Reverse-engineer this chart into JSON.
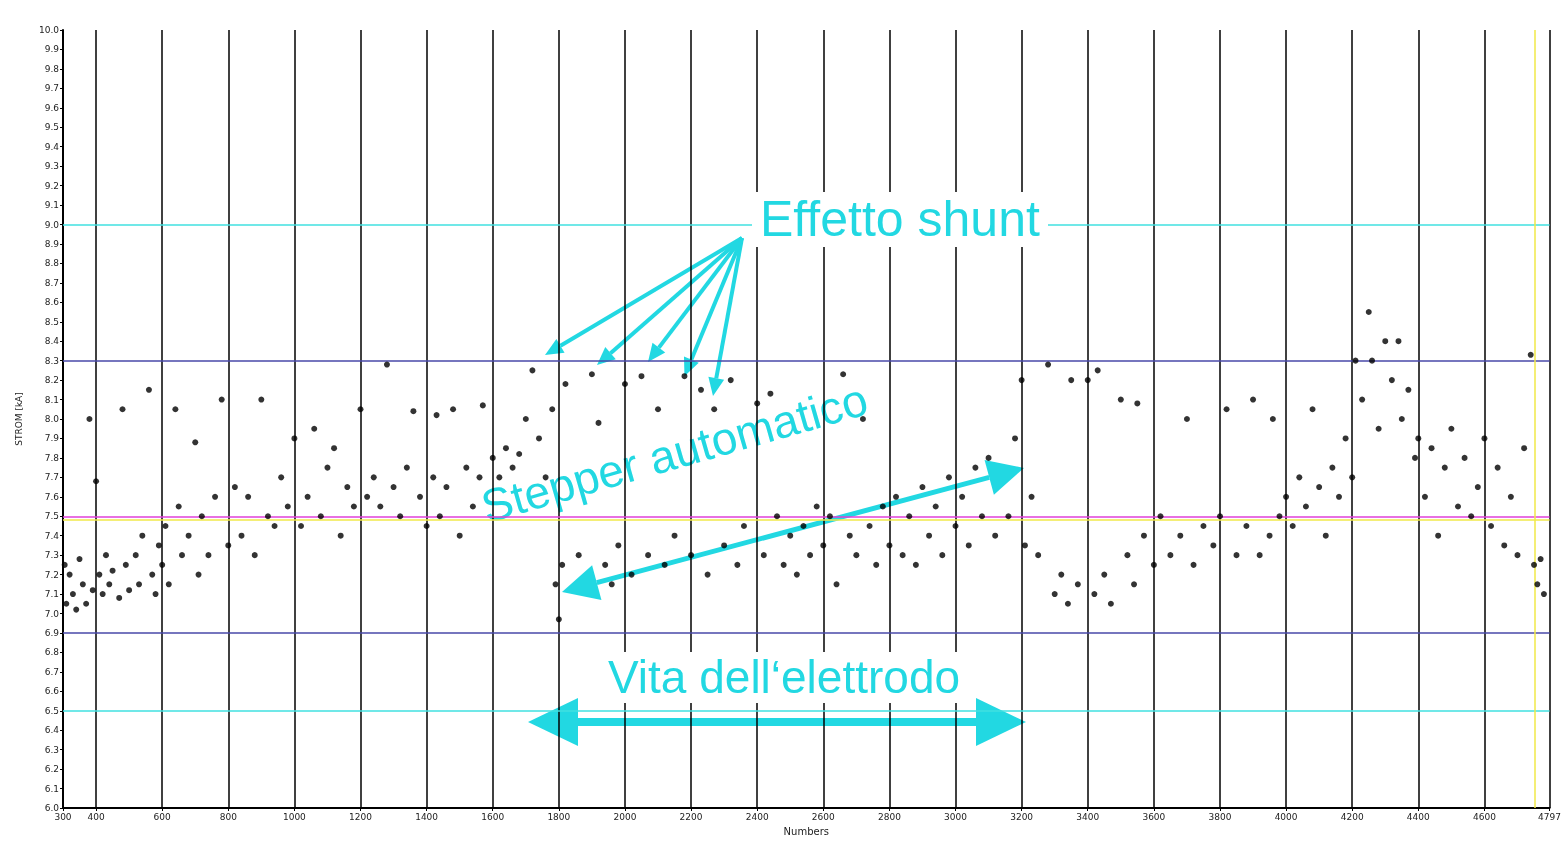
{
  "chart_data": {
    "type": "scatter",
    "xlabel": "Numbers",
    "ylabel": "STROM [kA]",
    "annotations": [
      {
        "text": "Effetto shunt",
        "x": 2180,
        "y": 8.22
      },
      "Stepper automatico",
      "Vita dell‘elettrodo"
    ],
    "xlim": [
      300,
      4797
    ],
    "xticks": [
      300,
      400,
      600,
      800,
      1000,
      1200,
      1400,
      1600,
      1800,
      2000,
      2200,
      2400,
      2600,
      2800,
      3000,
      3200,
      3400,
      3600,
      3800,
      4000,
      4200,
      4400,
      4600,
      4797
    ],
    "ylim": [
      6,
      10
    ],
    "yticks": [
      {
        "value": 6,
        "label": "6.0"
      },
      6.1,
      6.2,
      6.3,
      6.4,
      6.5,
      6.6,
      6.7,
      6.8,
      6.9,
      {
        "value": 7,
        "label": "7.0"
      },
      7.1,
      7.2,
      7.3,
      7.4,
      7.5,
      7.6,
      7.7,
      7.8,
      7.9,
      {
        "value": 8,
        "label": "8.0"
      },
      8.1,
      8.2,
      8.3,
      8.4,
      8.5,
      8.6,
      8.7,
      8.8,
      8.9,
      {
        "value": 9,
        "label": "9.0"
      },
      9.1,
      9.2,
      9.3,
      9.4,
      9.5,
      9.6,
      9.7,
      9.8,
      9.9,
      {
        "value": 10,
        "label": "10.0"
      }
    ],
    "grid": "x",
    "marker": "circle",
    "ref_lines": [
      {
        "axis": "y",
        "value": 9.0,
        "color": "#40e0e0"
      },
      {
        "axis": "y",
        "value": 8.3,
        "color": "#4848a8"
      },
      {
        "axis": "y",
        "value": 7.5,
        "color": "#e040d8"
      },
      {
        "axis": "y",
        "value": 7.48,
        "color": "#f0e848"
      },
      {
        "axis": "y",
        "value": 6.9,
        "color": "#4848a8"
      },
      {
        "axis": "y",
        "value": 6.5,
        "color": "#40e0e0"
      },
      {
        "axis": "x",
        "value": 4751,
        "color": "#f0e848"
      }
    ],
    "series": [
      {
        "color": "#000000",
        "x": [
          305,
          310,
          320,
          330,
          340,
          350,
          360,
          370,
          380,
          390,
          400,
          410,
          420,
          430,
          440,
          450,
          470,
          480,
          490,
          500,
          520,
          530,
          540,
          560,
          570,
          580,
          590,
          600,
          610,
          620,
          640,
          650,
          660,
          680,
          700,
          710,
          720,
          740,
          760,
          780,
          800,
          820,
          840,
          860,
          880,
          900,
          920,
          940,
          960,
          980,
          1000,
          1020,
          1040,
          1060,
          1080,
          1100,
          1120,
          1140,
          1160,
          1180,
          1200,
          1220,
          1240,
          1260,
          1280,
          1300,
          1320,
          1340,
          1360,
          1380,
          1400,
          1420,
          1430,
          1440,
          1460,
          1480,
          1500,
          1520,
          1540,
          1560,
          1570,
          1600,
          1620,
          1640,
          1660,
          1680,
          1700,
          1720,
          1740,
          1760,
          1780,
          1790,
          1800,
          1810,
          1820,
          1840,
          1860,
          1880,
          1900,
          1920,
          1940,
          1960,
          1980,
          2000,
          2020,
          2050,
          2070,
          2100,
          2120,
          2150,
          2180,
          2200,
          2230,
          2250,
          2270,
          2300,
          2320,
          2340,
          2360,
          2400,
          2420,
          2440,
          2460,
          2480,
          2500,
          2520,
          2540,
          2560,
          2580,
          2600,
          2620,
          2640,
          2660,
          2680,
          2700,
          2720,
          2740,
          2760,
          2780,
          2800,
          2820,
          2840,
          2860,
          2880,
          2900,
          2920,
          2940,
          2960,
          2980,
          3000,
          3020,
          3040,
          3060,
          3080,
          3100,
          3120,
          3140,
          3160,
          3180,
          3200,
          3210,
          3230,
          3250,
          3280,
          3300,
          3320,
          3340,
          3350,
          3370,
          3400,
          3420,
          3430,
          3450,
          3470,
          3500,
          3520,
          3540,
          3550,
          3570,
          3600,
          3620,
          3650,
          3680,
          3700,
          3720,
          3750,
          3780,
          3800,
          3820,
          3850,
          3880,
          3900,
          3920,
          3950,
          3960,
          3980,
          4000,
          4020,
          4040,
          4060,
          4080,
          4100,
          4120,
          4140,
          4160,
          4180,
          4200,
          4210,
          4230,
          4250,
          4260,
          4280,
          4300,
          4320,
          4340,
          4350,
          4370,
          4390,
          4400,
          4420,
          4440,
          4460,
          4480,
          4500,
          4520,
          4540,
          4560,
          4580,
          4600,
          4620,
          4640,
          4660,
          4680,
          4700,
          4720,
          4740,
          4750,
          4760,
          4770,
          4780
        ],
        "values": [
          7.25,
          7.05,
          7.2,
          7.1,
          7.02,
          7.28,
          7.15,
          7.05,
          8.0,
          7.12,
          7.68,
          7.2,
          7.1,
          7.3,
          7.15,
          7.22,
          7.08,
          8.05,
          7.25,
          7.12,
          7.3,
          7.15,
          7.4,
          8.15,
          7.2,
          7.1,
          7.35,
          7.25,
          7.45,
          7.15,
          8.05,
          7.55,
          7.3,
          7.4,
          7.88,
          7.2,
          7.5,
          7.3,
          7.6,
          8.1,
          7.35,
          7.65,
          7.4,
          7.6,
          7.3,
          8.1,
          7.5,
          7.45,
          7.7,
          7.55,
          7.9,
          7.45,
          7.6,
          7.95,
          7.5,
          7.75,
          7.85,
          7.4,
          7.65,
          7.55,
          8.05,
          7.6,
          7.7,
          7.55,
          8.28,
          7.65,
          7.5,
          7.75,
          8.04,
          7.6,
          7.45,
          7.7,
          8.02,
          7.5,
          7.65,
          8.05,
          7.4,
          7.75,
          7.55,
          7.7,
          8.07,
          7.8,
          7.7,
          7.85,
          7.75,
          7.82,
          8.0,
          8.25,
          7.9,
          7.7,
          8.05,
          7.15,
          6.97,
          7.25,
          8.18,
          null,
          7.3,
          null,
          8.23,
          7.98,
          7.25,
          7.15,
          7.35,
          8.18,
          7.2,
          8.22,
          7.3,
          8.05,
          7.25,
          7.4,
          8.22,
          7.3,
          8.15,
          7.2,
          8.05,
          7.35,
          8.2,
          7.25,
          7.45,
          8.08,
          7.3,
          8.13,
          7.5,
          7.25,
          7.4,
          7.2,
          7.45,
          7.3,
          7.55,
          7.35,
          7.5,
          7.15,
          8.23,
          7.4,
          7.3,
          8.0,
          7.45,
          7.25,
          7.55,
          7.35,
          7.6,
          7.3,
          7.5,
          7.25,
          7.65,
          7.4,
          7.55,
          7.3,
          7.7,
          7.45,
          7.6,
          7.35,
          7.75,
          7.5,
          7.8,
          7.4,
          null,
          7.5,
          7.9,
          8.2,
          7.35,
          7.6,
          7.3,
          8.28,
          7.1,
          7.2,
          7.05,
          8.2,
          7.15,
          8.2,
          7.1,
          8.25,
          7.2,
          7.05,
          8.1,
          7.3,
          7.15,
          8.08,
          7.4,
          7.25,
          7.5,
          7.3,
          7.4,
          8.0,
          7.25,
          7.45,
          7.35,
          7.5,
          8.05,
          7.3,
          7.45,
          8.1,
          7.3,
          7.4,
          8.0,
          7.5,
          7.6,
          7.45,
          7.7,
          7.55,
          8.05,
          7.65,
          7.4,
          7.75,
          7.6,
          7.9,
          7.7,
          8.3,
          8.1,
          8.55,
          8.3,
          7.95,
          8.4,
          8.2,
          8.4,
          8.0,
          8.15,
          7.8,
          7.9,
          7.6,
          7.85,
          7.4,
          7.75,
          7.95,
          7.55,
          7.8,
          7.5,
          7.65,
          7.9,
          7.45,
          7.75,
          7.35,
          7.6,
          7.3,
          7.85,
          8.33,
          7.25,
          7.15,
          7.28,
          7.1
        ]
      }
    ]
  }
}
